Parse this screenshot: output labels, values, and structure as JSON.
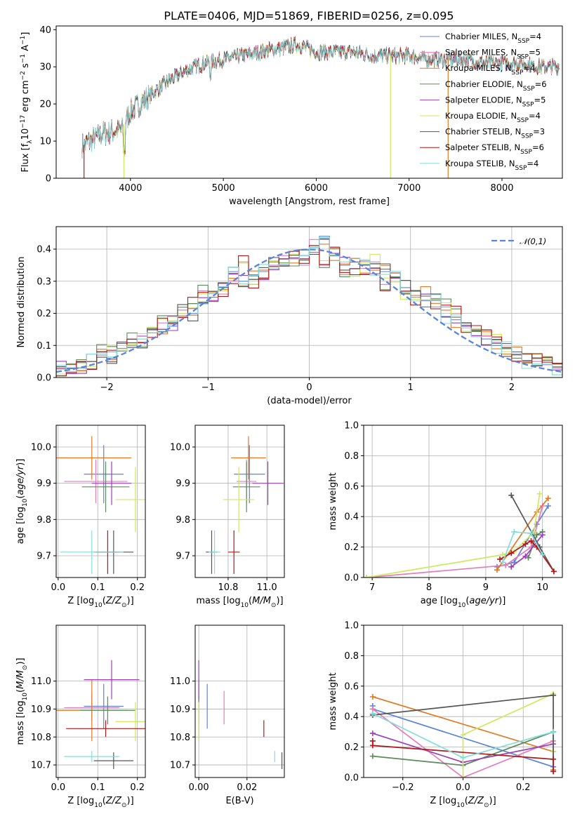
{
  "figure_title": "PLATE=0406, MJD=51869, FIBERID=0256, z=0.095",
  "colors": [
    "#5b84d8",
    "#e57dbb",
    "#e07a26",
    "#5b8a5b",
    "#9a3fb8",
    "#cfe860",
    "#555555",
    "#b01a1a",
    "#86dcdc"
  ],
  "chart_data": [
    {
      "type": "line",
      "xlabel": "wavelength [Angstrom, rest frame]",
      "ylabel": "Flux [f_λ10^-17 erg cm^-2 s^-1 A^-1]",
      "xlim": [
        3200,
        8650
      ],
      "ylim": [
        0,
        41
      ],
      "xticks": [
        4000,
        5000,
        6000,
        7000,
        8000
      ],
      "yticks": [
        0,
        10,
        20,
        30,
        40
      ],
      "legend_position": "upper-right",
      "series": [
        {
          "name": "Chabrier MILES, N_SSP=4"
        },
        {
          "name": "Salpeter MILES, N_SSP=5"
        },
        {
          "name": "Kroupa MILES, N_SSP=4"
        },
        {
          "name": "Chabrier ELODIE, N_SSP=6"
        },
        {
          "name": "Salpeter ELODIE, N_SSP=5"
        },
        {
          "name": "Kroupa ELODIE, N_SSP=4"
        },
        {
          "name": "Chabrier STELIB, N_SSP=3"
        },
        {
          "name": "Salpeter STELIB, N_SSP=6"
        },
        {
          "name": "Kroupa STELIB, N_SSP=4"
        }
      ],
      "continuum_wavelength": [
        3500,
        3700,
        3900,
        4000,
        4200,
        4400,
        4600,
        4800,
        5000,
        5200,
        5400,
        5600,
        5800,
        6000,
        6200,
        6400,
        6600,
        6800,
        7000,
        7200,
        7400,
        7600,
        7800,
        8000,
        8200,
        8400
      ],
      "continuum_flux": [
        9,
        12,
        13,
        18,
        22,
        26,
        29,
        31,
        32,
        33,
        34,
        35,
        36,
        34,
        34,
        34,
        33,
        33,
        33,
        32,
        32,
        32,
        31,
        31,
        31,
        30
      ]
    },
    {
      "type": "bar",
      "xlabel": "(data-model)/error",
      "ylabel": "Normed distribution",
      "xlim": [
        -2.5,
        2.5
      ],
      "ylim": [
        0,
        0.47
      ],
      "xticks": [
        -2,
        -1,
        0,
        1,
        2
      ],
      "yticks": [
        0.0,
        0.1,
        0.2,
        0.3,
        0.4
      ],
      "grid": true,
      "legend_position": "upper-right",
      "reference_curve": "𝒩(0,1)",
      "bin_edges": [
        -2.5,
        -2.4,
        -2.3,
        -2.2,
        -2.1,
        -2.0,
        -1.9,
        -1.8,
        -1.7,
        -1.6,
        -1.5,
        -1.4,
        -1.3,
        -1.2,
        -1.1,
        -1.0,
        -0.9,
        -0.8,
        -0.7,
        -0.6,
        -0.5,
        -0.4,
        -0.3,
        -0.2,
        -0.1,
        0.0,
        0.1,
        0.2,
        0.3,
        0.4,
        0.5,
        0.6,
        0.7,
        0.8,
        0.9,
        1.0,
        1.1,
        1.2,
        1.3,
        1.4,
        1.5,
        1.6,
        1.7,
        1.8,
        1.9,
        2.0,
        2.1,
        2.2,
        2.3,
        2.4,
        2.5
      ],
      "hist_values": [
        [
          0.03,
          0.03,
          0.03,
          0.05,
          0.07,
          0.06,
          0.09,
          0.1,
          0.11,
          0.15,
          0.15,
          0.16,
          0.21,
          0.2,
          0.23,
          0.25,
          0.28,
          0.33,
          0.3,
          0.32,
          0.33,
          0.36,
          0.37,
          0.37,
          0.38,
          0.39,
          0.44,
          0.38,
          0.35,
          0.36,
          0.35,
          0.34,
          0.33,
          0.31,
          0.28,
          0.25,
          0.26,
          0.24,
          0.19,
          0.18,
          0.16,
          0.13,
          0.12,
          0.1,
          0.09,
          0.08,
          0.05,
          0.05,
          0.04,
          0.03
        ],
        [
          0.03,
          0.04,
          0.05,
          0.05,
          0.08,
          0.08,
          0.09,
          0.12,
          0.12,
          0.14,
          0.17,
          0.19,
          0.21,
          0.23,
          0.27,
          0.24,
          0.26,
          0.3,
          0.36,
          0.29,
          0.31,
          0.35,
          0.38,
          0.37,
          0.35,
          0.43,
          0.35,
          0.4,
          0.32,
          0.34,
          0.34,
          0.36,
          0.29,
          0.31,
          0.26,
          0.25,
          0.24,
          0.22,
          0.22,
          0.2,
          0.16,
          0.15,
          0.13,
          0.11,
          0.09,
          0.07,
          0.05,
          0.05,
          0.04,
          0.03
        ]
      ]
    },
    {
      "type": "scatter",
      "xlabel": "Z [log10(Z/Z⊙)]",
      "ylabel": "age [log10(age/yr)]",
      "xlim": [
        -0.005,
        0.22
      ],
      "ylim": [
        9.64,
        10.06
      ],
      "xticks": [
        0.0,
        0.1,
        0.2
      ],
      "yticks": [
        9.7,
        9.8,
        9.9,
        10.0
      ],
      "grid": true,
      "points": [
        {
          "x": 0.115,
          "y": 9.925,
          "xerr": 0.05,
          "yerr": 0.08
        },
        {
          "x": 0.095,
          "y": 9.905,
          "xerr": 0.08,
          "yerr": 0.06
        },
        {
          "x": 0.085,
          "y": 9.97,
          "xerr": 0.1,
          "yerr": 0.06
        },
        {
          "x": 0.12,
          "y": 9.89,
          "xerr": 0.06,
          "yerr": 0.07
        },
        {
          "x": 0.135,
          "y": 9.9,
          "xerr": 0.05,
          "yerr": 0.06
        },
        {
          "x": 0.195,
          "y": 9.855,
          "xerr": 0.05,
          "yerr": 0.09
        },
        {
          "x": 0.14,
          "y": 9.71,
          "xerr": 0.05,
          "yerr": 0.06
        },
        {
          "x": 0.125,
          "y": 9.71,
          "xerr": 0.03,
          "yerr": 0.06
        },
        {
          "x": 0.085,
          "y": 9.71,
          "xerr": 0.08,
          "yerr": 0.06
        }
      ]
    },
    {
      "type": "scatter",
      "xlabel": "mass [log10(M/M⊙)]",
      "ylabel": "",
      "xlim": [
        10.63,
        11.09
      ],
      "ylim": [
        9.64,
        10.06
      ],
      "xticks": [
        10.8,
        11.0
      ],
      "yticks": [
        9.7,
        9.8,
        9.9,
        10.0
      ],
      "grid": true,
      "points": [
        {
          "x": 10.91,
          "y": 9.925,
          "xerr": 0.08,
          "yerr": 0.08
        },
        {
          "x": 10.895,
          "y": 9.905,
          "xerr": 0.05,
          "yerr": 0.06
        },
        {
          "x": 10.905,
          "y": 9.97,
          "xerr": 0.09,
          "yerr": 0.06
        },
        {
          "x": 10.895,
          "y": 9.89,
          "xerr": 0.07,
          "yerr": 0.07
        },
        {
          "x": 11.005,
          "y": 9.9,
          "xerr": 0.08,
          "yerr": 0.06
        },
        {
          "x": 10.855,
          "y": 9.855,
          "xerr": 0.08,
          "yerr": 0.09
        },
        {
          "x": 10.715,
          "y": 9.71,
          "xerr": 0.03,
          "yerr": 0.06
        },
        {
          "x": 10.83,
          "y": 9.71,
          "xerr": 0.03,
          "yerr": 0.06
        },
        {
          "x": 10.73,
          "y": 9.71,
          "xerr": 0.03,
          "yerr": 0.06
        }
      ]
    },
    {
      "type": "line",
      "xlabel": "age [log10(age/yr)]",
      "ylabel": "mass weight",
      "xlim": [
        6.85,
        10.35
      ],
      "ylim": [
        0.0,
        1.0
      ],
      "xticks": [
        7,
        8,
        9,
        10
      ],
      "yticks": [
        0.0,
        0.2,
        0.4,
        0.6,
        0.8,
        1.0
      ],
      "grid": true,
      "series": [
        {
          "x": [
            9.2,
            9.5,
            9.9,
            10.1
          ],
          "y": [
            0.07,
            0.1,
            0.35,
            0.47
          ]
        },
        {
          "x": [
            6.9,
            9.35,
            9.8,
            10.0
          ],
          "y": [
            0.0,
            0.08,
            0.2,
            0.47
          ]
        },
        {
          "x": [
            9.2,
            9.9,
            10.1
          ],
          "y": [
            0.05,
            0.43,
            0.52
          ]
        },
        {
          "x": [
            9.75,
            9.9,
            10.0
          ],
          "y": [
            0.13,
            0.28,
            0.3
          ]
        },
        {
          "x": [
            9.45,
            9.7,
            10.0
          ],
          "y": [
            0.07,
            0.14,
            0.28
          ]
        },
        {
          "x": [
            6.9,
            9.3,
            9.5,
            9.85,
            9.95
          ],
          "y": [
            0.0,
            0.15,
            0.17,
            0.3,
            0.55
          ]
        },
        {
          "x": [
            9.45,
            9.95,
            10.2
          ],
          "y": [
            0.54,
            0.2,
            0.04
          ]
        },
        {
          "x": [
            9.25,
            9.45,
            9.7,
            9.8,
            9.9,
            10.2
          ],
          "y": [
            0.12,
            0.16,
            0.22,
            0.24,
            0.2,
            0.04
          ]
        },
        {
          "x": [
            9.3,
            9.5,
            9.8,
            10.0
          ],
          "y": [
            0.1,
            0.3,
            0.29,
            0.15
          ]
        }
      ]
    },
    {
      "type": "scatter",
      "xlabel": "Z [log10(Z/Z⊙)]",
      "ylabel": "mass [log10(M/M⊙)]",
      "xlim": [
        -0.005,
        0.22
      ],
      "ylim": [
        10.655,
        11.2
      ],
      "xticks": [
        0.0,
        0.1,
        0.2
      ],
      "yticks": [
        10.7,
        10.8,
        10.9,
        11.0
      ],
      "grid": true,
      "points": [
        {
          "x": 0.115,
          "y": 10.91,
          "xerr": 0.05,
          "yerr": 0.08
        },
        {
          "x": 0.085,
          "y": 10.905,
          "xerr": 0.07,
          "yerr": 0.05
        },
        {
          "x": 0.085,
          "y": 10.895,
          "xerr": 0.09,
          "yerr": 0.11
        },
        {
          "x": 0.125,
          "y": 10.895,
          "xerr": 0.07,
          "yerr": 0.05
        },
        {
          "x": 0.135,
          "y": 11.005,
          "xerr": 0.07,
          "yerr": 0.07
        },
        {
          "x": 0.195,
          "y": 10.855,
          "xerr": 0.05,
          "yerr": 0.07
        },
        {
          "x": 0.14,
          "y": 10.715,
          "xerr": 0.05,
          "yerr": 0.03
        },
        {
          "x": 0.12,
          "y": 10.83,
          "xerr": 0.1,
          "yerr": 0.03
        },
        {
          "x": 0.085,
          "y": 10.73,
          "xerr": 0.07,
          "yerr": 0.02
        }
      ]
    },
    {
      "type": "scatter",
      "xlabel": "E(B-V)",
      "ylabel": "",
      "xlim": [
        -0.0015,
        0.0355
      ],
      "ylim": [
        10.655,
        11.2
      ],
      "xticks": [
        0.0,
        0.02
      ],
      "yticks": [
        10.7,
        10.8,
        10.9,
        11.0
      ],
      "grid": true,
      "points": [
        {
          "x": 0.0035,
          "y": 10.91,
          "yerr": 0.08
        },
        {
          "x": 0.0105,
          "y": 10.905,
          "yerr": 0.06
        },
        {
          "x": 0.0,
          "y": 10.895,
          "yerr": 0.11
        },
        {
          "x": 0.0,
          "y": 10.895,
          "yerr": 0.05
        },
        {
          "x": 0.0,
          "y": 11.005,
          "yerr": 0.07
        },
        {
          "x": 0.0,
          "y": 10.855,
          "yerr": 0.07
        },
        {
          "x": 0.0345,
          "y": 10.715,
          "yerr": 0.03
        },
        {
          "x": 0.027,
          "y": 10.83,
          "yerr": 0.03
        },
        {
          "x": 0.0315,
          "y": 10.73,
          "yerr": 0.02
        }
      ]
    },
    {
      "type": "line",
      "xlabel": "Z [log10(Z/Z⊙)]",
      "ylabel": "mass weight",
      "xlim": [
        -0.33,
        0.33
      ],
      "ylim": [
        0.0,
        1.0
      ],
      "xticks": [
        -0.2,
        0.0,
        0.2
      ],
      "yticks": [
        0.0,
        0.2,
        0.4,
        0.6,
        0.8,
        1.0
      ],
      "grid": true,
      "series": [
        {
          "x": [
            -0.3,
            -0.3,
            0.3,
            0.3
          ],
          "y": [
            0.47,
            0.45,
            0.07,
            0.3
          ]
        },
        {
          "x": [
            -0.3,
            0.0,
            0.3,
            0.3
          ],
          "y": [
            0.45,
            0.0,
            0.24,
            0.3
          ]
        },
        {
          "x": [
            -0.3,
            0.3,
            0.3
          ],
          "y": [
            0.53,
            0.17,
            0.05
          ]
        },
        {
          "x": [
            -0.3,
            0.0,
            0.3
          ],
          "y": [
            0.14,
            0.08,
            0.3
          ]
        },
        {
          "x": [
            -0.3,
            0.0,
            0.3
          ],
          "y": [
            0.29,
            0.1,
            0.22
          ]
        },
        {
          "x": [
            0.0,
            0.0,
            0.3,
            0.3
          ],
          "y": [
            0.0,
            0.28,
            0.55,
            0.17
          ]
        },
        {
          "x": [
            -0.3,
            0.3,
            0.3
          ],
          "y": [
            0.41,
            0.54,
            0.04
          ]
        },
        {
          "x": [
            -0.3,
            -0.3,
            0.3,
            0.3
          ],
          "y": [
            0.24,
            0.21,
            0.12,
            0.04
          ]
        },
        {
          "x": [
            -0.3,
            0.0,
            0.3
          ],
          "y": [
            0.42,
            0.13,
            0.3
          ]
        }
      ]
    }
  ]
}
